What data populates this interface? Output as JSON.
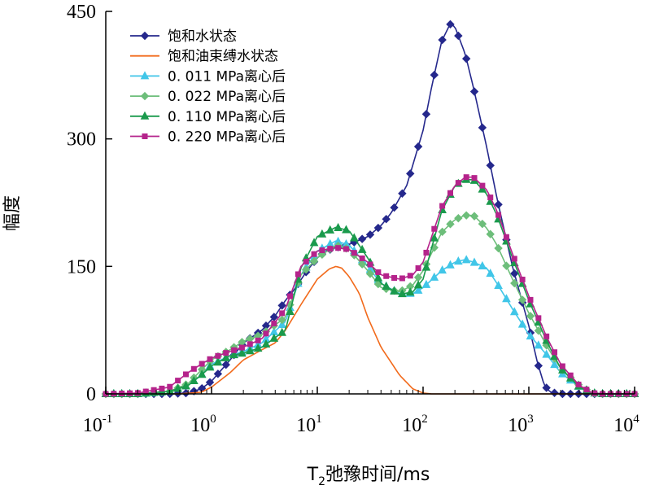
{
  "chart_data": {
    "type": "line",
    "xscale": "log",
    "xlim": [
      0.1,
      10000
    ],
    "ylim": [
      0,
      450
    ],
    "xlabel": {
      "base": "T",
      "subscript": "2",
      "rest": "弛豫时间/ms"
    },
    "ylabel": "幅度",
    "x_ticks": [
      {
        "base": "10",
        "exp": "-1"
      },
      {
        "base": "10",
        "exp": "0"
      },
      {
        "base": "10",
        "exp": "1"
      },
      {
        "base": "10",
        "exp": "2"
      },
      {
        "base": "10",
        "exp": "3"
      },
      {
        "base": "10",
        "exp": "4"
      }
    ],
    "y_ticks": [
      "0",
      "150",
      "300",
      "450"
    ],
    "y_tick_values": [
      0,
      150,
      300,
      450
    ],
    "legend_position": "top-left",
    "series": [
      {
        "name": "饱和水状态",
        "color": "#25288C",
        "marker": "diamond",
        "points": [
          [
            0.1,
            0
          ],
          [
            0.2,
            0
          ],
          [
            0.4,
            0
          ],
          [
            0.6,
            1
          ],
          [
            0.8,
            6
          ],
          [
            1,
            15
          ],
          [
            1.5,
            40
          ],
          [
            2,
            60
          ],
          [
            3,
            75
          ],
          [
            4,
            92
          ],
          [
            5,
            110
          ],
          [
            6,
            122
          ],
          [
            8,
            145
          ],
          [
            10,
            160
          ],
          [
            12,
            168
          ],
          [
            15,
            172
          ],
          [
            20,
            176
          ],
          [
            30,
            185
          ],
          [
            40,
            198
          ],
          [
            50,
            213
          ],
          [
            70,
            245
          ],
          [
            100,
            310
          ],
          [
            120,
            360
          ],
          [
            150,
            415
          ],
          [
            180,
            435
          ],
          [
            200,
            432
          ],
          [
            250,
            400
          ],
          [
            300,
            360
          ],
          [
            400,
            290
          ],
          [
            500,
            230
          ],
          [
            700,
            150
          ],
          [
            1000,
            80
          ],
          [
            1200,
            38
          ],
          [
            1400,
            10
          ],
          [
            1600,
            2
          ],
          [
            2000,
            0
          ],
          [
            3000,
            0
          ],
          [
            5000,
            0
          ],
          [
            10000,
            0
          ]
        ]
      },
      {
        "name": "饱和油束缚水状态",
        "color": "#F26A1B",
        "marker": "none",
        "points": [
          [
            0.1,
            0
          ],
          [
            0.5,
            0
          ],
          [
            0.8,
            2
          ],
          [
            1,
            8
          ],
          [
            1.5,
            25
          ],
          [
            2,
            40
          ],
          [
            3,
            52
          ],
          [
            4,
            60
          ],
          [
            5,
            75
          ],
          [
            7,
            105
          ],
          [
            10,
            135
          ],
          [
            13,
            147
          ],
          [
            15,
            150
          ],
          [
            17,
            148
          ],
          [
            20,
            138
          ],
          [
            25,
            118
          ],
          [
            30,
            90
          ],
          [
            40,
            55
          ],
          [
            60,
            22
          ],
          [
            80,
            6
          ],
          [
            100,
            1
          ],
          [
            120,
            0
          ],
          [
            1000,
            0
          ],
          [
            10000,
            0
          ]
        ]
      },
      {
        "name": "0. 011 MPa离心后",
        "color": "#41C6E8",
        "marker": "triangle",
        "points": [
          [
            0.1,
            0
          ],
          [
            0.2,
            0
          ],
          [
            0.4,
            3
          ],
          [
            0.6,
            10
          ],
          [
            0.8,
            22
          ],
          [
            1,
            35
          ],
          [
            1.5,
            45
          ],
          [
            2,
            50
          ],
          [
            3,
            60
          ],
          [
            5,
            85
          ],
          [
            7,
            140
          ],
          [
            10,
            168
          ],
          [
            15,
            180
          ],
          [
            20,
            175
          ],
          [
            30,
            150
          ],
          [
            40,
            130
          ],
          [
            60,
            118
          ],
          [
            80,
            118
          ],
          [
            100,
            125
          ],
          [
            150,
            145
          ],
          [
            200,
            155
          ],
          [
            250,
            158
          ],
          [
            300,
            155
          ],
          [
            400,
            148
          ],
          [
            500,
            130
          ],
          [
            700,
            100
          ],
          [
            1000,
            70
          ],
          [
            1500,
            45
          ],
          [
            2000,
            25
          ],
          [
            3000,
            8
          ],
          [
            4000,
            1
          ],
          [
            5000,
            0
          ],
          [
            10000,
            0
          ]
        ]
      },
      {
        "name": "0. 022 MPa离心后",
        "color": "#6DBE7A",
        "marker": "diamond",
        "points": [
          [
            0.1,
            0
          ],
          [
            0.2,
            0
          ],
          [
            0.4,
            3
          ],
          [
            0.6,
            12
          ],
          [
            0.8,
            28
          ],
          [
            1,
            40
          ],
          [
            1.5,
            52
          ],
          [
            2,
            62
          ],
          [
            3,
            70
          ],
          [
            5,
            90
          ],
          [
            7,
            140
          ],
          [
            10,
            160
          ],
          [
            15,
            175
          ],
          [
            20,
            170
          ],
          [
            30,
            145
          ],
          [
            40,
            125
          ],
          [
            60,
            120
          ],
          [
            80,
            128
          ],
          [
            100,
            145
          ],
          [
            150,
            190
          ],
          [
            200,
            205
          ],
          [
            250,
            210
          ],
          [
            300,
            210
          ],
          [
            400,
            195
          ],
          [
            500,
            175
          ],
          [
            700,
            135
          ],
          [
            1000,
            95
          ],
          [
            1500,
            55
          ],
          [
            2000,
            30
          ],
          [
            3000,
            10
          ],
          [
            4000,
            1
          ],
          [
            5000,
            0
          ],
          [
            10000,
            0
          ]
        ]
      },
      {
        "name": "0. 110 MPa离心后",
        "color": "#1A9A4C",
        "marker": "triangle",
        "points": [
          [
            0.1,
            0
          ],
          [
            0.2,
            0
          ],
          [
            0.4,
            3
          ],
          [
            0.6,
            10
          ],
          [
            0.8,
            22
          ],
          [
            1,
            33
          ],
          [
            1.5,
            45
          ],
          [
            2,
            48
          ],
          [
            3,
            55
          ],
          [
            5,
            75
          ],
          [
            7,
            148
          ],
          [
            10,
            185
          ],
          [
            15,
            196
          ],
          [
            20,
            192
          ],
          [
            30,
            160
          ],
          [
            40,
            130
          ],
          [
            60,
            117
          ],
          [
            80,
            120
          ],
          [
            100,
            135
          ],
          [
            150,
            215
          ],
          [
            200,
            245
          ],
          [
            250,
            252
          ],
          [
            300,
            252
          ],
          [
            400,
            235
          ],
          [
            500,
            210
          ],
          [
            700,
            160
          ],
          [
            1000,
            110
          ],
          [
            1500,
            60
          ],
          [
            2000,
            30
          ],
          [
            3000,
            8
          ],
          [
            4000,
            1
          ],
          [
            5000,
            0
          ],
          [
            10000,
            0
          ]
        ]
      },
      {
        "name": "0. 220 MPa离心后",
        "color": "#B5238B",
        "marker": "square",
        "points": [
          [
            0.1,
            0
          ],
          [
            0.2,
            1
          ],
          [
            0.4,
            8
          ],
          [
            0.6,
            25
          ],
          [
            0.8,
            35
          ],
          [
            1,
            42
          ],
          [
            1.5,
            50
          ],
          [
            2,
            55
          ],
          [
            3,
            65
          ],
          [
            5,
            100
          ],
          [
            7,
            150
          ],
          [
            10,
            168
          ],
          [
            15,
            172
          ],
          [
            20,
            170
          ],
          [
            30,
            155
          ],
          [
            40,
            140
          ],
          [
            60,
            135
          ],
          [
            80,
            140
          ],
          [
            100,
            155
          ],
          [
            150,
            220
          ],
          [
            200,
            245
          ],
          [
            250,
            255
          ],
          [
            300,
            255
          ],
          [
            400,
            240
          ],
          [
            500,
            215
          ],
          [
            700,
            165
          ],
          [
            1000,
            115
          ],
          [
            1500,
            65
          ],
          [
            2000,
            35
          ],
          [
            3000,
            10
          ],
          [
            4000,
            1
          ],
          [
            5000,
            0
          ],
          [
            10000,
            0
          ]
        ]
      }
    ]
  }
}
